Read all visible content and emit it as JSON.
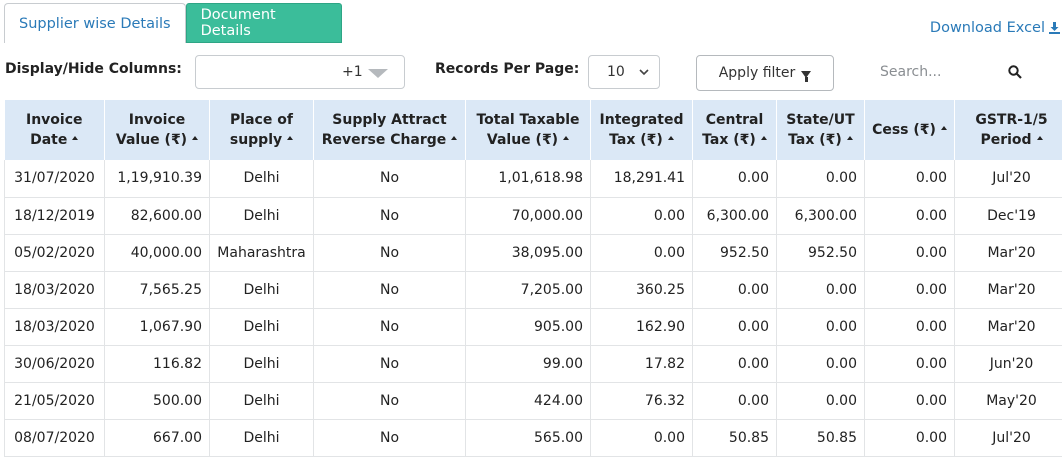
{
  "tabs": [
    {
      "label": "Supplier wise Details",
      "active": false
    },
    {
      "label": "Document Details",
      "active": true
    }
  ],
  "download_label": "Download Excel",
  "columns_filter": {
    "label": "Display/Hide Columns:",
    "count": "+1"
  },
  "records_per_page": {
    "label": "Records Per Page:",
    "value": "10"
  },
  "apply_filter_label": "Apply filter",
  "search": {
    "placeholder": "Search..."
  },
  "colors": {
    "active_tab": "#3bbd9a",
    "link": "#2a7ab8",
    "header_bg": "#dbe8f6"
  },
  "table": {
    "headers": [
      [
        "Invoice",
        "Date"
      ],
      [
        "Invoice",
        "Value (₹)"
      ],
      [
        "Place of",
        "supply"
      ],
      [
        "Supply Attract",
        "Reverse Charge"
      ],
      [
        "Total Taxable",
        "Value (₹)"
      ],
      [
        "Integrated",
        "Tax (₹)"
      ],
      [
        "Central",
        "Tax (₹)"
      ],
      [
        "State/UT",
        "Tax (₹)"
      ],
      [
        "Cess (₹)"
      ],
      [
        "GSTR-1/5",
        "Period"
      ]
    ],
    "rows": [
      [
        "31/07/2020",
        "1,19,910.39",
        "Delhi",
        "No",
        "1,01,618.98",
        "18,291.41",
        "0.00",
        "0.00",
        "0.00",
        "Jul'20"
      ],
      [
        "18/12/2019",
        "82,600.00",
        "Delhi",
        "No",
        "70,000.00",
        "0.00",
        "6,300.00",
        "6,300.00",
        "0.00",
        "Dec'19"
      ],
      [
        "05/02/2020",
        "40,000.00",
        "Maharashtra",
        "No",
        "38,095.00",
        "0.00",
        "952.50",
        "952.50",
        "0.00",
        "Mar'20"
      ],
      [
        "18/03/2020",
        "7,565.25",
        "Delhi",
        "No",
        "7,205.00",
        "360.25",
        "0.00",
        "0.00",
        "0.00",
        "Mar'20"
      ],
      [
        "18/03/2020",
        "1,067.90",
        "Delhi",
        "No",
        "905.00",
        "162.90",
        "0.00",
        "0.00",
        "0.00",
        "Mar'20"
      ],
      [
        "30/06/2020",
        "116.82",
        "Delhi",
        "No",
        "99.00",
        "17.82",
        "0.00",
        "0.00",
        "0.00",
        "Jun'20"
      ],
      [
        "21/05/2020",
        "500.00",
        "Delhi",
        "No",
        "424.00",
        "76.32",
        "0.00",
        "0.00",
        "0.00",
        "May'20"
      ],
      [
        "08/07/2020",
        "667.00",
        "Delhi",
        "No",
        "565.00",
        "0.00",
        "50.85",
        "50.85",
        "0.00",
        "Jul'20"
      ]
    ]
  }
}
